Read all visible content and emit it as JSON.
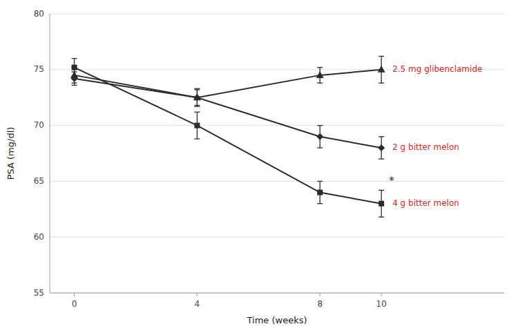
{
  "chart_data": {
    "type": "line",
    "x": [
      0,
      4,
      8,
      10
    ],
    "series": [
      {
        "name": "2.5 mg glibenclamide",
        "color": "#2b2b2b",
        "marker": "triangle",
        "values": [
          74.5,
          72.5,
          74.5,
          75.0
        ],
        "errors": [
          0.7,
          0.8,
          0.7,
          1.2
        ]
      },
      {
        "name": "2 g bitter melon",
        "color": "#2b2b2b",
        "marker": "diamond",
        "values": [
          74.2,
          72.5,
          69.0,
          68.0
        ],
        "errors": [
          0.6,
          0.7,
          1.0,
          1.0
        ]
      },
      {
        "name": "4 g bitter melon",
        "color": "#2b2b2b",
        "marker": "square",
        "values": [
          75.2,
          70.0,
          64.0,
          63.0
        ],
        "errors": [
          0.8,
          1.2,
          1.0,
          1.2
        ]
      }
    ],
    "x_label": "Time (weeks)",
    "y_label": "PSA (mg/dl)",
    "xlim": [
      -0.8,
      14.0
    ],
    "xticks": [
      0,
      4,
      8,
      10
    ],
    "ylim": [
      55,
      80
    ],
    "yticks": [
      55,
      60,
      65,
      70,
      75,
      80
    ],
    "grid": true,
    "annotations": [
      {
        "text": "*",
        "x": 10.25,
        "y": 64.7
      }
    ]
  }
}
